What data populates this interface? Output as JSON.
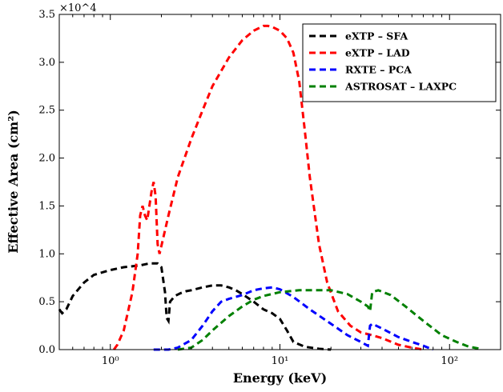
{
  "chart_data": {
    "type": "line",
    "title": "",
    "xlabel": "Energy (keV)",
    "ylabel": "Effective Area (cm²)",
    "x_scale": "log",
    "xlim": [
      0.5,
      200
    ],
    "ylim": [
      0,
      35000
    ],
    "y_multiplier": "×10^4",
    "y_ticks": [
      0,
      5000,
      10000,
      15000,
      20000,
      25000,
      30000,
      35000
    ],
    "y_tick_labels": [
      "0.0",
      "0.5",
      "1.0",
      "1.5",
      "2.0",
      "2.5",
      "3.0",
      "3.5"
    ],
    "x_ticks": [
      1,
      10,
      100
    ],
    "x_tick_labels": [
      "10⁰",
      "10¹",
      "10²"
    ],
    "grid": false,
    "legend_position": "top-right",
    "series": [
      {
        "name": "eXTP – SFA",
        "color": "#000000",
        "points": [
          [
            0.5,
            4200
          ],
          [
            0.52,
            3800
          ],
          [
            0.55,
            4200
          ],
          [
            0.6,
            5600
          ],
          [
            0.7,
            7000
          ],
          [
            0.8,
            7800
          ],
          [
            1.0,
            8300
          ],
          [
            1.2,
            8600
          ],
          [
            1.5,
            8800
          ],
          [
            1.7,
            9000
          ],
          [
            1.9,
            9000
          ],
          [
            2.0,
            8600
          ],
          [
            2.1,
            6000
          ],
          [
            2.15,
            3300
          ],
          [
            2.2,
            3000
          ],
          [
            2.25,
            5000
          ],
          [
            2.4,
            5600
          ],
          [
            2.6,
            5900
          ],
          [
            2.8,
            6100
          ],
          [
            3.0,
            6200
          ],
          [
            3.5,
            6500
          ],
          [
            4.0,
            6700
          ],
          [
            4.5,
            6700
          ],
          [
            5.0,
            6500
          ],
          [
            5.5,
            6200
          ],
          [
            6.0,
            5800
          ],
          [
            7.0,
            5000
          ],
          [
            8.0,
            4200
          ],
          [
            9.0,
            3800
          ],
          [
            10.0,
            3200
          ],
          [
            11.0,
            2000
          ],
          [
            12.0,
            800
          ],
          [
            14.0,
            300
          ],
          [
            17.0,
            80
          ],
          [
            20.0,
            0
          ]
        ]
      },
      {
        "name": "eXTP – LAD",
        "color": "#ff0000",
        "points": [
          [
            1.05,
            0
          ],
          [
            1.1,
            500
          ],
          [
            1.2,
            2000
          ],
          [
            1.35,
            6000
          ],
          [
            1.45,
            10000
          ],
          [
            1.5,
            14000
          ],
          [
            1.55,
            15000
          ],
          [
            1.6,
            14000
          ],
          [
            1.65,
            13500
          ],
          [
            1.75,
            16500
          ],
          [
            1.8,
            17500
          ],
          [
            1.85,
            16000
          ],
          [
            1.9,
            11000
          ],
          [
            1.95,
            10000
          ],
          [
            2.2,
            14000
          ],
          [
            2.5,
            18000
          ],
          [
            3.0,
            22000
          ],
          [
            3.5,
            25000
          ],
          [
            4.0,
            27500
          ],
          [
            5.0,
            30500
          ],
          [
            6.0,
            32300
          ],
          [
            7.0,
            33300
          ],
          [
            8.0,
            33800
          ],
          [
            8.5,
            33800
          ],
          [
            9.0,
            33700
          ],
          [
            10.0,
            33300
          ],
          [
            11.0,
            32500
          ],
          [
            12.0,
            31000
          ],
          [
            13.0,
            28000
          ],
          [
            14.0,
            23000
          ],
          [
            15.0,
            18000
          ],
          [
            17.0,
            11000
          ],
          [
            19.0,
            7000
          ],
          [
            22.0,
            4000
          ],
          [
            26.0,
            2500
          ],
          [
            30.0,
            1800
          ],
          [
            35.0,
            1500
          ],
          [
            40.0,
            1200
          ],
          [
            50.0,
            500
          ],
          [
            60.0,
            200
          ],
          [
            70.0,
            0
          ]
        ]
      },
      {
        "name": "RXTE – PCA",
        "color": "#0000ff",
        "points": [
          [
            1.8,
            0
          ],
          [
            2.2,
            0
          ],
          [
            2.5,
            200
          ],
          [
            3.0,
            1000
          ],
          [
            3.5,
            2500
          ],
          [
            4.0,
            4000
          ],
          [
            4.5,
            5000
          ],
          [
            5.0,
            5300
          ],
          [
            6.0,
            5700
          ],
          [
            7.0,
            6200
          ],
          [
            8.0,
            6400
          ],
          [
            9.0,
            6500
          ],
          [
            10.0,
            6300
          ],
          [
            12.0,
            5500
          ],
          [
            15.0,
            4200
          ],
          [
            20.0,
            2700
          ],
          [
            25.0,
            1500
          ],
          [
            30.0,
            800
          ],
          [
            33.0,
            400
          ],
          [
            34.0,
            2500
          ],
          [
            35.0,
            2700
          ],
          [
            40.0,
            2200
          ],
          [
            50.0,
            1300
          ],
          [
            60.0,
            800
          ],
          [
            70.0,
            400
          ],
          [
            80.0,
            0
          ]
        ]
      },
      {
        "name": "ASTROSAT – LAXPC",
        "color": "#008000",
        "points": [
          [
            2.5,
            0
          ],
          [
            3.0,
            200
          ],
          [
            3.5,
            1000
          ],
          [
            4.0,
            2000
          ],
          [
            5.0,
            3500
          ],
          [
            6.0,
            4500
          ],
          [
            7.0,
            5200
          ],
          [
            8.0,
            5600
          ],
          [
            10.0,
            6000
          ],
          [
            13.0,
            6200
          ],
          [
            20.0,
            6200
          ],
          [
            25.0,
            5800
          ],
          [
            30.0,
            5000
          ],
          [
            33.0,
            4500
          ],
          [
            34.0,
            4000
          ],
          [
            35.0,
            6000
          ],
          [
            38.0,
            6200
          ],
          [
            45.0,
            5700
          ],
          [
            55.0,
            4500
          ],
          [
            70.0,
            3000
          ],
          [
            90.0,
            1500
          ],
          [
            110.0,
            800
          ],
          [
            130.0,
            300
          ],
          [
            150.0,
            100
          ]
        ]
      }
    ]
  }
}
